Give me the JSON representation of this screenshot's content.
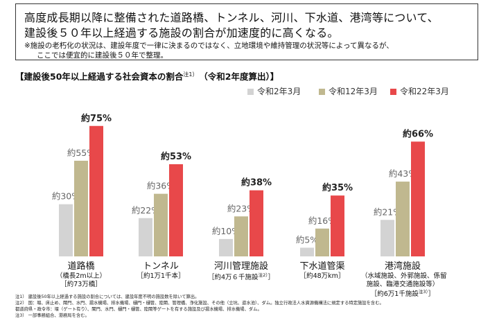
{
  "intro": {
    "line1": "高度成長期以降に整備された道路橋、トンネル、河川、下水道、港湾等について、",
    "line2": "建設後５０年以上経過する施設の割合が加速度的に高くなる。",
    "note1": "※施設の老朽化の状況は、建設年度で一律に決まるのではなく、立地環境や維持管理の状況等によって異なるが、",
    "note2": "ここでは便宜的に建設後５０年で整理。"
  },
  "chart_header": {
    "title_main": "【建設後50年以上経過する社会資本の割合",
    "title_sup": "注1）",
    "title_sub": "（令和2年度算出）】"
  },
  "chart_data": {
    "type": "bar",
    "title": "【建設後50年以上経過する社会資本の割合（令和2年度算出）】",
    "categories": [
      "道路橋",
      "トンネル",
      "河川管理施設",
      "下水道管渠",
      "港湾施設"
    ],
    "category_details": [
      [
        "（橋長2m以上）",
        "［約73万橋］"
      ],
      [
        "［約1万1千本］"
      ],
      [
        "［約4万６千施設注2）］"
      ],
      [
        "［約48万km］"
      ],
      [
        "（水域施設、外郭施設、係留",
        "施設、臨港交通施設等）",
        "［約6万1千施設注3）］"
      ]
    ],
    "series": [
      {
        "name": "令和2年3月",
        "color": "#d3d3d3",
        "values": [
          30,
          22,
          10,
          5,
          21
        ],
        "labels": [
          "約30%",
          "約22%",
          "約10%",
          "約5%",
          "約21%"
        ]
      },
      {
        "name": "令和12年3月",
        "color": "#c0b88f",
        "values": [
          55,
          36,
          23,
          16,
          43
        ],
        "labels": [
          "約55%",
          "約36%",
          "約23%",
          "約16%",
          "約43%"
        ]
      },
      {
        "name": "令和22年3月",
        "color": "#e8484a",
        "values": [
          75,
          53,
          38,
          35,
          66
        ],
        "labels": [
          "約75%",
          "約53%",
          "約38%",
          "約35%",
          "約66%"
        ]
      }
    ],
    "ylim": [
      0,
      80
    ],
    "grid": false,
    "legend_position": "top-right",
    "xlabel": "",
    "ylabel": ""
  },
  "notes": [
    "注1） 建設後50年以上経過する施設の割合については、建設年度不明の施設数を除いて算出。",
    "注2） 国：堰、床止め、閘門、水門、揚水機場、排水機場、樋門・樋管、陸閘、管理橋、浄化施設、その他（立坑、遊水池）、ダム。独立行政法人水資源機構法に規定する特定施設を含む。",
    "都道府県・政令市：堰（ゲート有り）、閘門、水門、樋門・樋管、陸閘等ゲートを有する施設及び揚水機場、排水機場、ダム。",
    "注3） 一部事務組合、港務局を含む。"
  ]
}
